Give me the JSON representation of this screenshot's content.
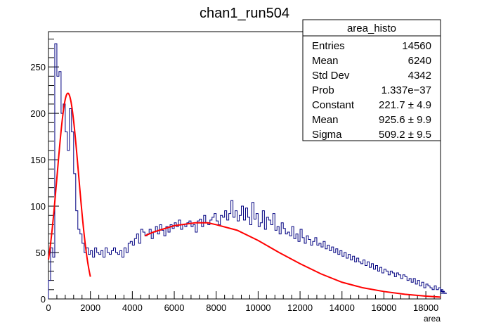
{
  "chart_data": {
    "type": "histogram",
    "title": "chan1_run504",
    "xlabel": "area",
    "ylabel": "",
    "xlim": [
      0,
      18700
    ],
    "ylim": [
      0,
      288
    ],
    "x_ticks": [
      "0",
      "2000",
      "4000",
      "6000",
      "8000",
      "10000",
      "12000",
      "14000",
      "16000",
      "18000"
    ],
    "y_ticks": [
      "0",
      "50",
      "100",
      "150",
      "200",
      "250"
    ],
    "bin_width": 100,
    "bin_start": 0,
    "counts": [
      20,
      55,
      45,
      275,
      240,
      245,
      200,
      210,
      180,
      160,
      205,
      180,
      135,
      95,
      75,
      70,
      60,
      50,
      55,
      48,
      52,
      45,
      55,
      50,
      48,
      52,
      45,
      55,
      50,
      48,
      52,
      55,
      50,
      48,
      52,
      45,
      55,
      50,
      60,
      62,
      58,
      65,
      70,
      60,
      75,
      72,
      68,
      70,
      75,
      65,
      72,
      78,
      70,
      80,
      74,
      68,
      78,
      72,
      80,
      76,
      82,
      78,
      85,
      75,
      80,
      78,
      82,
      84,
      78,
      80,
      72,
      84,
      86,
      78,
      90,
      82,
      80,
      85,
      88,
      92,
      84,
      80,
      90,
      88,
      95,
      85,
      92,
      106,
      88,
      95,
      84,
      90,
      100,
      85,
      98,
      88,
      80,
      104,
      86,
      92,
      78,
      82,
      95,
      75,
      88,
      85,
      80,
      92,
      74,
      78,
      70,
      82,
      76,
      70,
      72,
      68,
      78,
      65,
      70,
      62,
      75,
      66,
      60,
      68,
      64,
      58,
      62,
      66,
      58,
      60,
      56,
      62,
      54,
      58,
      52,
      56,
      50,
      54,
      48,
      52,
      46,
      50,
      44,
      48,
      42,
      46,
      40,
      44,
      40,
      38,
      42,
      36,
      40,
      34,
      38,
      32,
      36,
      30,
      34,
      28,
      32,
      30,
      26,
      30,
      28,
      24,
      28,
      26,
      22,
      26,
      24,
      20,
      22,
      18,
      22,
      16,
      20,
      14,
      18,
      12,
      16,
      14,
      12,
      10,
      14,
      10,
      12,
      8,
      10,
      8,
      6
    ],
    "series": [
      {
        "name": "fit_gaus",
        "params": {
          "constant": 221.7,
          "mean": 925.6,
          "sigma": 509.2
        },
        "x_range": [
          0,
          2000
        ],
        "color": "#ff0000"
      },
      {
        "name": "fit_broad",
        "x_range": [
          4600,
          18700
        ],
        "color": "#ff0000",
        "points": [
          [
            4600,
            68
          ],
          [
            5000,
            72
          ],
          [
            6000,
            79
          ],
          [
            7000,
            82
          ],
          [
            7600,
            82
          ],
          [
            8000,
            80
          ],
          [
            9000,
            74
          ],
          [
            10000,
            63
          ],
          [
            11000,
            50
          ],
          [
            12000,
            38
          ],
          [
            13000,
            27
          ],
          [
            14000,
            18
          ],
          [
            15000,
            12
          ],
          [
            16000,
            8
          ],
          [
            17000,
            5
          ],
          [
            18000,
            3
          ],
          [
            18700,
            2
          ]
        ]
      }
    ],
    "hist_color": "#000080"
  },
  "stats_box": {
    "title": "area_histo",
    "rows": [
      {
        "label": "Entries",
        "value": "14560"
      },
      {
        "label": "Mean",
        "value": "6240"
      },
      {
        "label": "Std Dev",
        "value": "4342"
      },
      {
        "label": "Prob",
        "value": "1.337e−37"
      },
      {
        "label": "Constant",
        "value": "221.7 ± 4.9"
      },
      {
        "label": "Mean",
        "value": "925.6 ± 9.9"
      },
      {
        "label": "Sigma",
        "value": "509.2 ± 9.5"
      }
    ]
  }
}
